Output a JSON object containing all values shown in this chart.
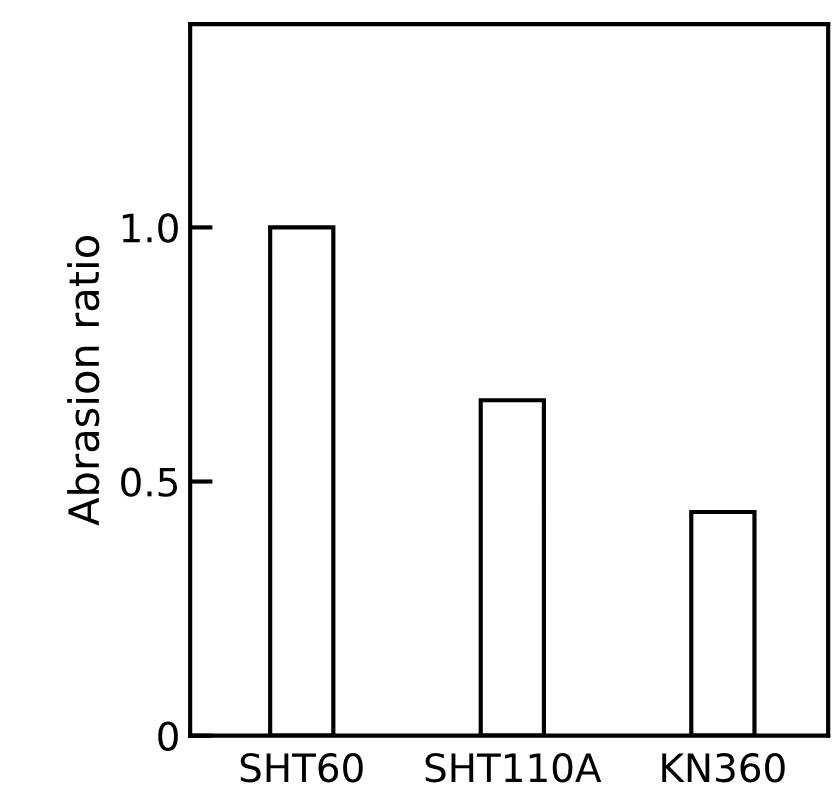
{
  "chart_data": {
    "type": "bar",
    "ylabel": "Abrasion ratio",
    "categories": [
      "SHT60",
      "SHT110A",
      "KN360"
    ],
    "values": [
      1.0,
      0.66,
      0.44
    ],
    "color": "#ffffff",
    "ylim": [
      0,
      1.4
    ],
    "yticks": [
      0,
      0.5,
      {
        "value": 1,
        "label": "1.0"
      }
    ],
    "grid": false
  }
}
